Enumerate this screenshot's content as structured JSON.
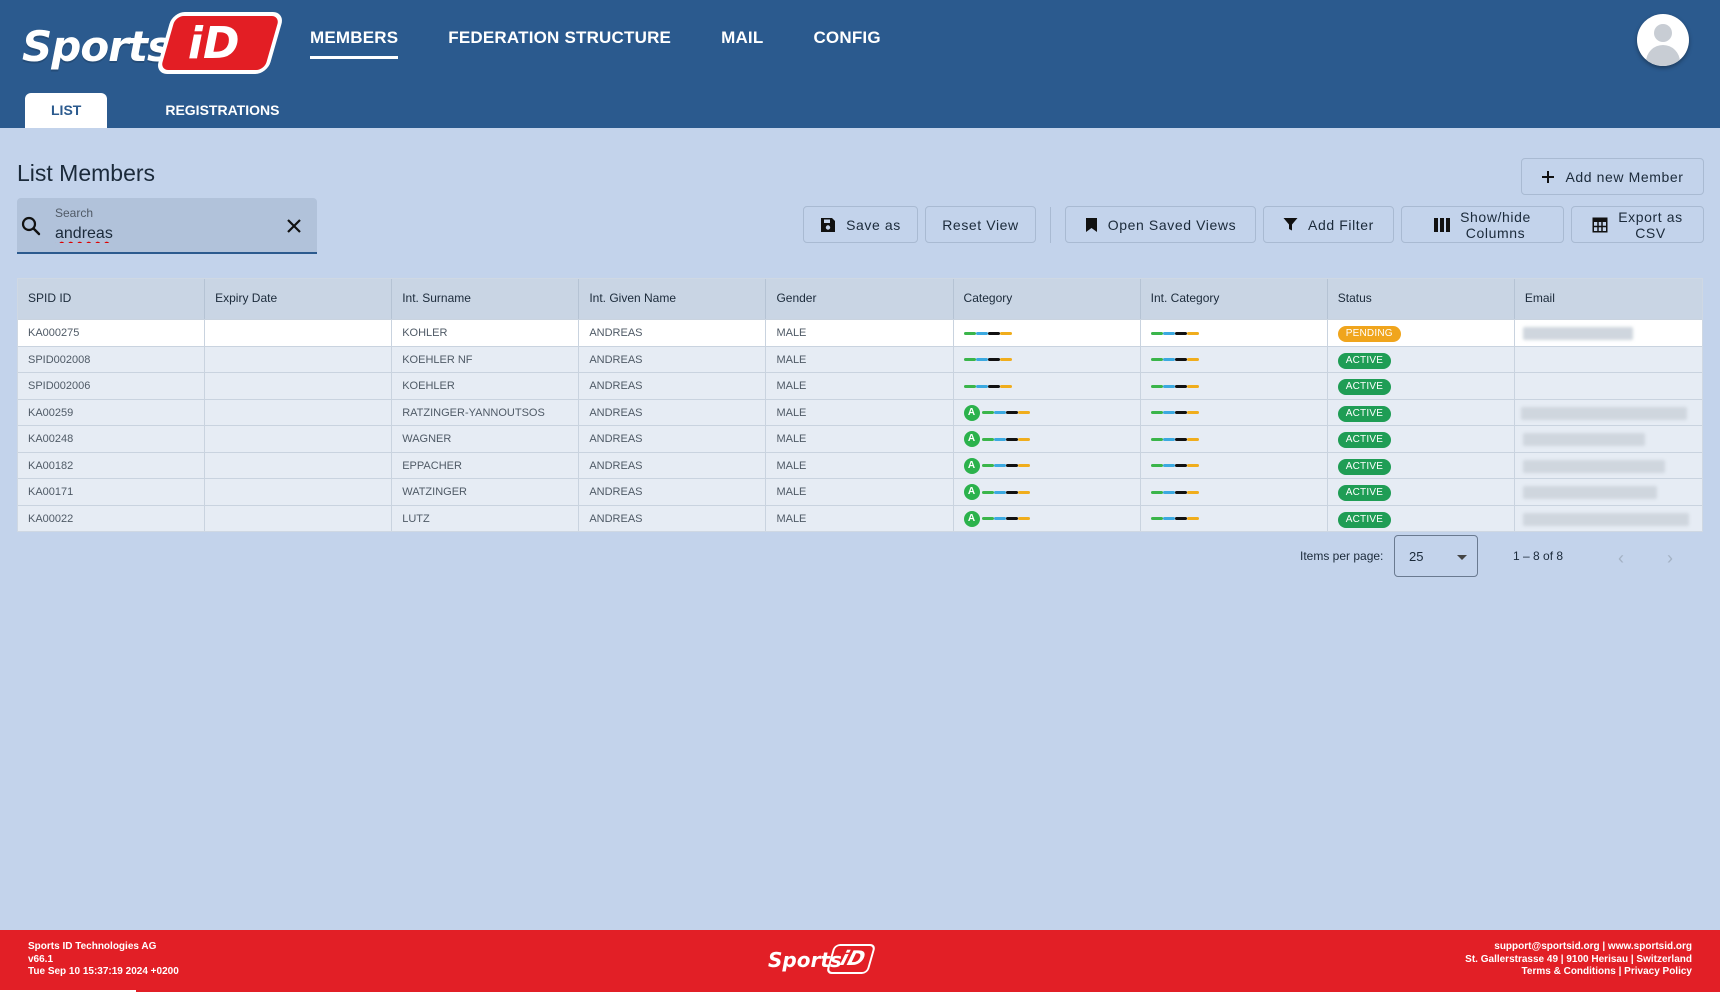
{
  "app": {
    "logo_text": "Sports",
    "logo_badge": "iD"
  },
  "nav": [
    "MEMBERS",
    "FEDERATION STRUCTURE",
    "MAIL",
    "CONFIG"
  ],
  "subtabs": [
    "LIST",
    "REGISTRATIONS"
  ],
  "page": {
    "title": "List Members"
  },
  "search": {
    "label": "Search",
    "value": "andreas"
  },
  "toolbar": {
    "add_member": "Add new Member",
    "save_as": "Save as",
    "reset_view": "Reset View",
    "open_saved_views": "Open Saved Views",
    "add_filter": "Add Filter",
    "show_hide_columns_1": "Show/hide",
    "show_hide_columns_2": "Columns",
    "export_csv_1": "Export as",
    "export_csv_2": "CSV"
  },
  "table": {
    "columns": [
      "SPID ID",
      "Expiry Date",
      "Int. Surname",
      "Int. Given Name",
      "Gender",
      "Category",
      "Int. Category",
      "Status",
      "Email"
    ],
    "rows": [
      {
        "spid": "KA000275",
        "expiry": "",
        "surname": "KOHLER",
        "given": "ANDREAS",
        "gender": "MALE",
        "cat_badge": "",
        "status": "PENDING"
      },
      {
        "spid": "SPID002008",
        "expiry": "",
        "surname": "KOEHLER NF",
        "given": "ANDREAS",
        "gender": "MALE",
        "cat_badge": "",
        "status": "ACTIVE"
      },
      {
        "spid": "SPID002006",
        "expiry": "",
        "surname": "KOEHLER",
        "given": "ANDREAS",
        "gender": "MALE",
        "cat_badge": "",
        "status": "ACTIVE"
      },
      {
        "spid": "KA00259",
        "expiry": "",
        "surname": "RATZINGER-YANNOUTSOS",
        "given": "ANDREAS",
        "gender": "MALE",
        "cat_badge": "A",
        "status": "ACTIVE"
      },
      {
        "spid": "KA00248",
        "expiry": "",
        "surname": "WAGNER",
        "given": "ANDREAS",
        "gender": "MALE",
        "cat_badge": "A",
        "status": "ACTIVE"
      },
      {
        "spid": "KA00182",
        "expiry": "",
        "surname": "EPPACHER",
        "given": "ANDREAS",
        "gender": "MALE",
        "cat_badge": "A",
        "status": "ACTIVE"
      },
      {
        "spid": "KA00171",
        "expiry": "",
        "surname": "WATZINGER",
        "given": "ANDREAS",
        "gender": "MALE",
        "cat_badge": "A",
        "status": "ACTIVE"
      },
      {
        "spid": "KA00022",
        "expiry": "",
        "surname": "LUTZ",
        "given": "ANDREAS",
        "gender": "MALE",
        "cat_badge": "A",
        "status": "ACTIVE"
      }
    ]
  },
  "pagination": {
    "label": "Items per page:",
    "per_page": "25",
    "range": "1 – 8 of 8"
  },
  "footer": {
    "company": "Sports ID Technologies AG",
    "version": "v66.1",
    "build": "Tue Sep 10 15:37:19 2024 +0200",
    "contact": "support@sportsid.org | www.sportsid.org",
    "address": "St. Gallerstrasse 49 | 9100 Herisau | Switzerland",
    "links": "Terms & Conditions | Privacy Policy"
  },
  "colors": {
    "header": "#2b5a8e",
    "footer": "#e21f26",
    "active": "#1f9d55",
    "pending": "#f0a51d",
    "background": "#c3d3eb"
  },
  "icons": [
    "search-icon",
    "close-icon",
    "plus-icon",
    "save-icon",
    "bookmark-icon",
    "filter-icon",
    "columns-icon",
    "table-icon",
    "chevron-left-icon",
    "chevron-right-icon"
  ]
}
